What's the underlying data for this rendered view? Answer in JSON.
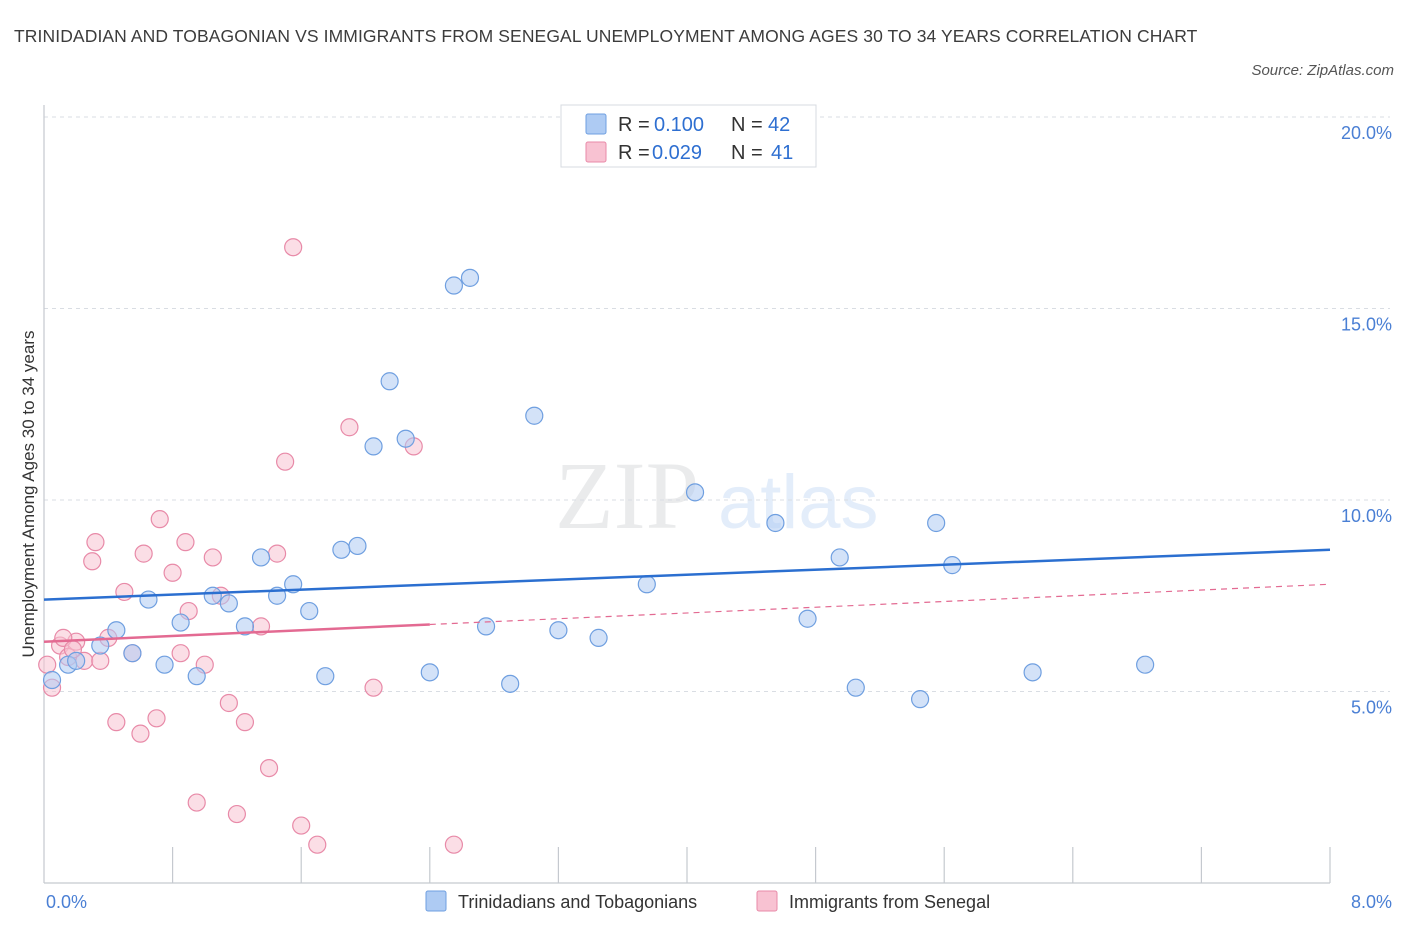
{
  "title": "TRINIDADIAN AND TOBAGONIAN VS IMMIGRANTS FROM SENEGAL UNEMPLOYMENT AMONG AGES 30 TO 34 YEARS CORRELATION CHART",
  "source": "Source: ZipAtlas.com",
  "watermark": {
    "zip": "ZIP",
    "atlas": "atlas"
  },
  "legend": {
    "rows": [
      {
        "r_label": "R =",
        "r_value": "0.100",
        "n_label": "N =",
        "n_value": "42"
      },
      {
        "r_label": "R =",
        "r_value": "0.029",
        "n_label": "N =",
        "n_value": "41"
      }
    ]
  },
  "bottom_legend": [
    "Trinidadians and Tobagonians",
    "Immigrants from Senegal"
  ],
  "colors": {
    "blue_fill": "#aecbf3",
    "blue_stroke": "#6f9fe0",
    "blue_line": "#2b6fd0",
    "pink_fill": "#f8c2d2",
    "pink_stroke": "#e88aa8",
    "pink_line": "#e36a92",
    "grid": "#d9dde3",
    "axis_text": "#4a7fd4"
  },
  "chart_data": {
    "type": "scatter",
    "title": "TRINIDADIAN AND TOBAGONIAN VS IMMIGRANTS FROM SENEGAL UNEMPLOYMENT AMONG AGES 30 TO 34 YEARS CORRELATION CHART",
    "xlabel": "",
    "ylabel": "Unemployment Among Ages 30 to 34 years",
    "xlim": [
      0,
      8
    ],
    "ylim": [
      0,
      20
    ],
    "x_tick_labels": [
      "0.0%",
      "8.0%"
    ],
    "y_ticks": [
      5,
      10,
      15,
      20
    ],
    "y_tick_labels": [
      "5.0%",
      "10.0%",
      "15.0%",
      "20.0%"
    ],
    "grid": true,
    "series": [
      {
        "name": "Trinidadians and Tobagonians",
        "R": 0.1,
        "N": 42,
        "trend": {
          "x": [
            0,
            8
          ],
          "y": [
            7.4,
            8.7
          ],
          "style": "solid"
        },
        "points": [
          [
            0.05,
            5.3
          ],
          [
            0.15,
            5.7
          ],
          [
            0.2,
            5.8
          ],
          [
            0.35,
            6.2
          ],
          [
            0.45,
            6.6
          ],
          [
            0.55,
            6.0
          ],
          [
            0.65,
            7.4
          ],
          [
            0.75,
            5.7
          ],
          [
            0.85,
            6.8
          ],
          [
            0.95,
            5.4
          ],
          [
            1.05,
            7.5
          ],
          [
            1.15,
            7.3
          ],
          [
            1.25,
            6.7
          ],
          [
            1.35,
            8.5
          ],
          [
            1.45,
            7.5
          ],
          [
            1.55,
            7.8
          ],
          [
            1.65,
            7.1
          ],
          [
            1.75,
            5.4
          ],
          [
            1.85,
            8.7
          ],
          [
            1.95,
            8.8
          ],
          [
            2.05,
            11.4
          ],
          [
            2.15,
            13.1
          ],
          [
            2.25,
            11.6
          ],
          [
            2.4,
            5.5
          ],
          [
            2.55,
            15.6
          ],
          [
            2.65,
            15.8
          ],
          [
            2.75,
            6.7
          ],
          [
            2.9,
            5.2
          ],
          [
            3.05,
            12.2
          ],
          [
            3.2,
            6.6
          ],
          [
            3.45,
            6.4
          ],
          [
            3.75,
            7.8
          ],
          [
            4.05,
            10.2
          ],
          [
            4.55,
            9.4
          ],
          [
            4.75,
            6.9
          ],
          [
            4.95,
            8.5
          ],
          [
            5.05,
            5.1
          ],
          [
            5.45,
            4.8
          ],
          [
            5.55,
            9.4
          ],
          [
            5.65,
            8.3
          ],
          [
            6.15,
            5.5
          ],
          [
            6.85,
            5.7
          ]
        ]
      },
      {
        "name": "Immigrants from Senegal",
        "R": 0.029,
        "N": 41,
        "trend": {
          "x": [
            0,
            8
          ],
          "y": [
            6.3,
            7.8
          ],
          "style": "solid-then-dashed",
          "solid_until": 2.4
        },
        "points": [
          [
            0.02,
            5.7
          ],
          [
            0.05,
            5.1
          ],
          [
            0.1,
            6.2
          ],
          [
            0.15,
            5.9
          ],
          [
            0.2,
            6.3
          ],
          [
            0.25,
            5.8
          ],
          [
            0.3,
            8.4
          ],
          [
            0.32,
            8.9
          ],
          [
            0.35,
            5.8
          ],
          [
            0.4,
            6.4
          ],
          [
            0.45,
            4.2
          ],
          [
            0.5,
            7.6
          ],
          [
            0.55,
            6.0
          ],
          [
            0.6,
            3.9
          ],
          [
            0.62,
            8.6
          ],
          [
            0.7,
            4.3
          ],
          [
            0.72,
            9.5
          ],
          [
            0.8,
            8.1
          ],
          [
            0.85,
            6.0
          ],
          [
            0.88,
            8.9
          ],
          [
            0.9,
            7.1
          ],
          [
            0.95,
            2.1
          ],
          [
            1.0,
            5.7
          ],
          [
            1.05,
            8.5
          ],
          [
            1.1,
            7.5
          ],
          [
            1.15,
            4.7
          ],
          [
            1.2,
            1.8
          ],
          [
            1.25,
            4.2
          ],
          [
            1.35,
            6.7
          ],
          [
            1.4,
            3.0
          ],
          [
            1.45,
            8.6
          ],
          [
            1.5,
            11.0
          ],
          [
            1.55,
            16.6
          ],
          [
            1.6,
            1.5
          ],
          [
            1.7,
            1.0
          ],
          [
            1.9,
            11.9
          ],
          [
            2.05,
            5.1
          ],
          [
            2.3,
            11.4
          ],
          [
            2.55,
            1.0
          ],
          [
            0.12,
            6.4
          ],
          [
            0.18,
            6.1
          ]
        ]
      }
    ]
  }
}
